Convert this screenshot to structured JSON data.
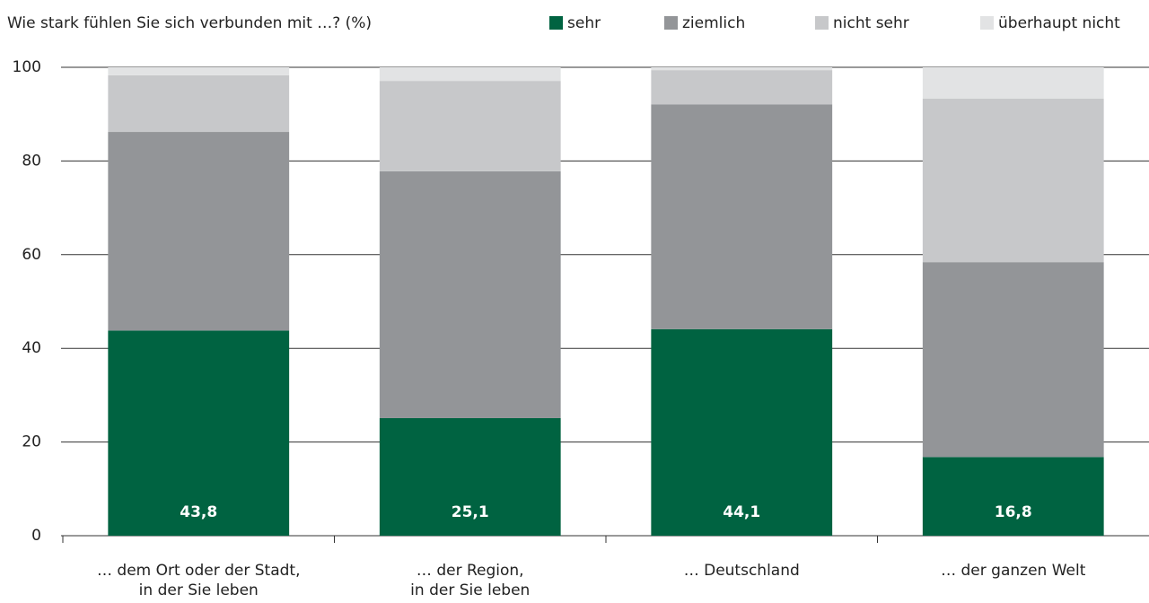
{
  "chart_data": {
    "type": "stacked_bar",
    "title": "Wie stark fühlen Sie sich verbunden mit …? (%)",
    "categories": [
      "… dem Ort oder der Stadt,\nin der Sie leben",
      "… der Region,\nin der Sie leben",
      "… Deutschland",
      "… der ganzen Welt"
    ],
    "series": [
      {
        "name": "sehr",
        "color": "#006341",
        "values": [
          43.8,
          25.1,
          44.1,
          16.8
        ],
        "value_labels": [
          "43,8",
          "25,1",
          "44,1",
          "16,8"
        ]
      },
      {
        "name": "ziemlich",
        "color": "#939598",
        "values": [
          42.4,
          52.7,
          48.0,
          41.6
        ]
      },
      {
        "name": "nicht sehr",
        "color": "#c7c8ca",
        "values": [
          12.1,
          19.3,
          7.3,
          34.9
        ]
      },
      {
        "name": "überhaupt nicht",
        "color": "#e2e3e4",
        "values": [
          1.7,
          2.9,
          0.6,
          6.7
        ]
      }
    ],
    "ylim": [
      0,
      100
    ],
    "yticks": [
      0,
      20,
      40,
      60,
      80,
      100
    ],
    "grid": true,
    "legend": "top"
  }
}
